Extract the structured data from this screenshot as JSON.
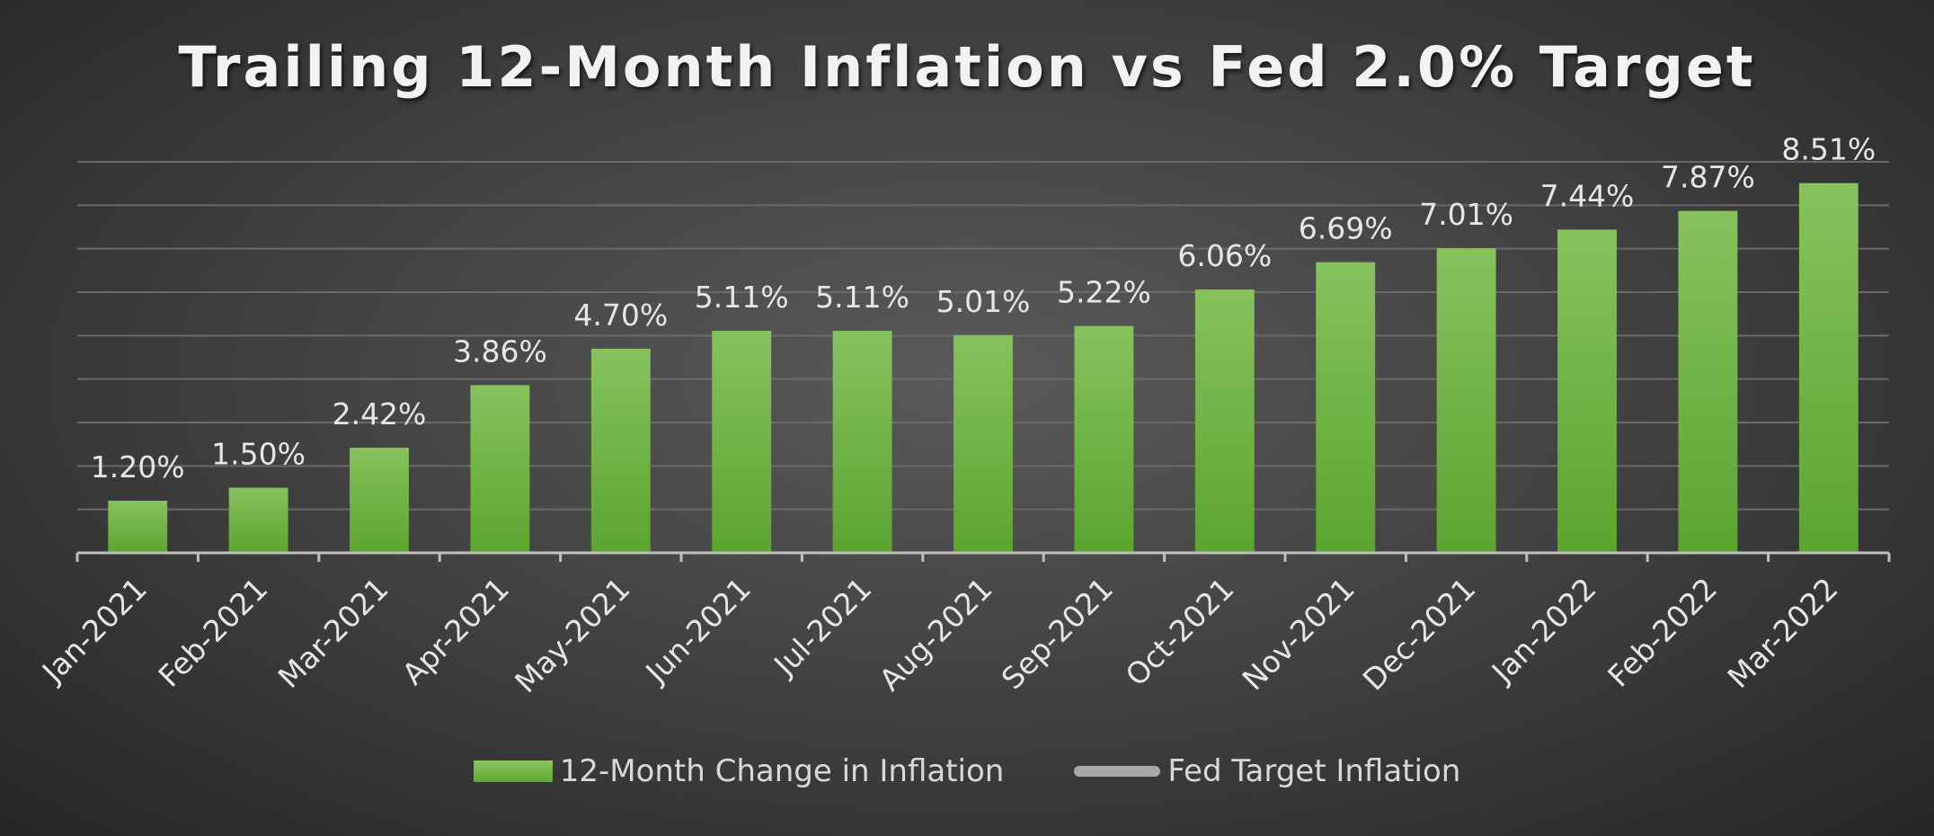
{
  "chart_data": {
    "type": "bar",
    "title": "Trailing 12-Month Inflation vs Fed 2.0% Target",
    "categories": [
      "Jan-2021",
      "Feb-2021",
      "Mar-2021",
      "Apr-2021",
      "May-2021",
      "Jun-2021",
      "Jul-2021",
      "Aug-2021",
      "Sep-2021",
      "Oct-2021",
      "Nov-2021",
      "Dec-2021",
      "Jan-2022",
      "Feb-2022",
      "Mar-2022"
    ],
    "series": [
      {
        "name": "12-Month Change in Inflation",
        "type": "bar",
        "values": [
          1.2,
          1.5,
          2.42,
          3.86,
          4.7,
          5.11,
          5.11,
          5.01,
          5.22,
          6.06,
          6.69,
          7.01,
          7.44,
          7.87,
          8.51
        ],
        "labels": [
          "1.20%",
          "1.50%",
          "2.42%",
          "3.86%",
          "4.70%",
          "5.11%",
          "5.11%",
          "5.01%",
          "5.22%",
          "6.06%",
          "6.69%",
          "7.01%",
          "7.44%",
          "7.87%",
          "8.51%"
        ],
        "color": "#6db33f"
      },
      {
        "name": "Fed Target Inflation",
        "type": "line",
        "values": [
          2.0,
          2.0,
          2.0,
          2.0,
          2.0,
          2.0,
          2.0,
          2.0,
          2.0,
          2.0,
          2.0,
          2.0,
          2.0,
          2.0,
          2.0
        ],
        "color": "#a9a9a9"
      }
    ],
    "ylim": [
      0,
      9
    ],
    "grid": true,
    "legend": "bottom"
  }
}
